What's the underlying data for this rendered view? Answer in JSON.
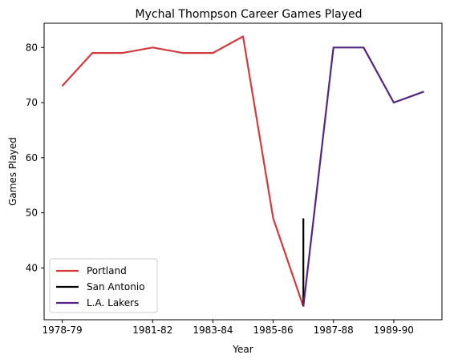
{
  "chart_data": {
    "type": "line",
    "title": "Mychal Thompson Career Games Played",
    "xlabel": "Year",
    "ylabel": "Games Played",
    "x_tick_labels": [
      "1978-79",
      "1981-82",
      "1983-84",
      "1985-86",
      "1987-88",
      "1989-90"
    ],
    "y_ticks": [
      40,
      50,
      60,
      70,
      80
    ],
    "ylim": [
      30.6,
      84.4
    ],
    "grid": false,
    "legend_position": "lower left",
    "series": [
      {
        "name": "Portland",
        "color": "#d43b3f",
        "x": [
          "1978-79",
          "1979-80",
          "1980-81",
          "1981-82",
          "1982-83",
          "1983-84",
          "1984-85",
          "1985-86",
          "1986-87"
        ],
        "values": [
          73,
          79,
          79,
          80,
          79,
          79,
          82,
          49,
          33
        ]
      },
      {
        "name": "San Antonio",
        "color": "#000000",
        "x": [
          "1986-87",
          "1986-87"
        ],
        "values": [
          49,
          33
        ]
      },
      {
        "name": "L.A. Lakers",
        "color": "#552583",
        "x": [
          "1986-87",
          "1987-88",
          "1988-89",
          "1989-90",
          "1990-91"
        ],
        "values": [
          33,
          80,
          80,
          70,
          72
        ]
      }
    ]
  }
}
